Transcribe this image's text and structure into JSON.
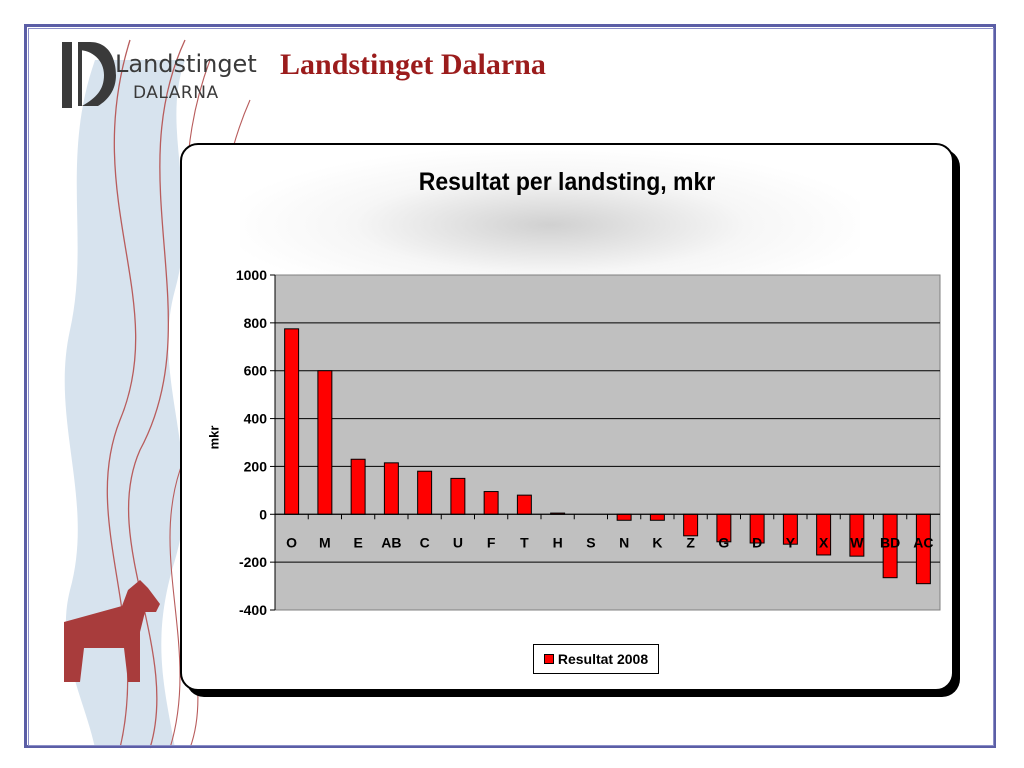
{
  "header": {
    "logo_line1": "Landstinget",
    "logo_line2": "DALARNA",
    "page_title": "Landstinget Dalarna"
  },
  "colors": {
    "title_red": "#9b1c1c",
    "frame_blue": "#5b5ea6",
    "bar_red": "#ff0000",
    "plot_gray": "#c0c0c0",
    "horse_red": "#a83c3c",
    "ribbon_blue": "#cfdcea"
  },
  "chart_data": {
    "type": "bar",
    "title": "Resultat per landsting, mkr",
    "xlabel": "",
    "ylabel": "mkr",
    "ylim": [
      -400,
      1000
    ],
    "yticks": [
      1000,
      800,
      600,
      400,
      200,
      0,
      -200,
      -400
    ],
    "grid": true,
    "legend_position": "bottom",
    "categories": [
      "O",
      "M",
      "E",
      "AB",
      "C",
      "U",
      "F",
      "T",
      "H",
      "S",
      "N",
      "K",
      "Z",
      "G",
      "D",
      "Y",
      "X",
      "W",
      "BD",
      "AC"
    ],
    "series": [
      {
        "name": "Resultat 2008",
        "color": "#ff0000",
        "values": [
          775,
          600,
          230,
          215,
          180,
          150,
          95,
          80,
          5,
          0,
          -25,
          -25,
          -90,
          -115,
          -120,
          -125,
          -170,
          -175,
          -265,
          -290
        ]
      }
    ]
  }
}
